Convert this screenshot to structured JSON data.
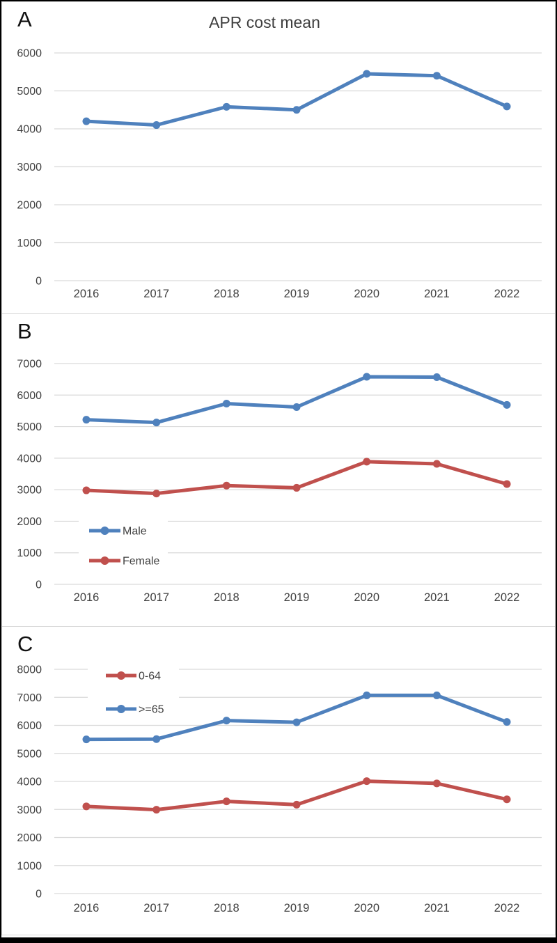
{
  "figure": {
    "description": "Three stacked line charts of APR cost mean by year",
    "panels": [
      "A",
      "B",
      "C"
    ]
  },
  "colors": {
    "blue": "#4f81bd",
    "red": "#c0504d",
    "grid": "#d9d9d9",
    "axis_text": "#404040",
    "panel_border": "#d9d9d9",
    "frame_border": "#000000"
  },
  "chart_data": [
    {
      "panel_label": "A",
      "type": "line",
      "title": "APR cost mean",
      "categories": [
        "2016",
        "2017",
        "2018",
        "2019",
        "2020",
        "2021",
        "2022"
      ],
      "xlabel": "",
      "ylabel": "",
      "ylim": [
        0,
        6000
      ],
      "ytick_step": 1000,
      "grid": true,
      "legend": false,
      "legend_position": null,
      "series": [
        {
          "name": "APR cost mean",
          "color_key": "blue",
          "values": [
            4200,
            4100,
            4580,
            4500,
            5450,
            5400,
            4590
          ]
        }
      ]
    },
    {
      "panel_label": "B",
      "type": "line",
      "title": "",
      "categories": [
        "2016",
        "2017",
        "2018",
        "2019",
        "2020",
        "2021",
        "2022"
      ],
      "xlabel": "",
      "ylabel": "",
      "ylim": [
        0,
        7000
      ],
      "ytick_step": 1000,
      "grid": true,
      "legend": true,
      "legend_position": "middle-left",
      "series": [
        {
          "name": "Male",
          "color_key": "blue",
          "values": [
            5220,
            5130,
            5730,
            5620,
            6580,
            6570,
            5690
          ]
        },
        {
          "name": "Female",
          "color_key": "red",
          "values": [
            2980,
            2880,
            3130,
            3060,
            3890,
            3820,
            3180
          ]
        }
      ]
    },
    {
      "panel_label": "C",
      "type": "line",
      "title": "",
      "categories": [
        "2016",
        "2017",
        "2018",
        "2019",
        "2020",
        "2021",
        "2022"
      ],
      "xlabel": "",
      "ylabel": "",
      "ylim": [
        0,
        8000
      ],
      "ytick_step": 1000,
      "grid": true,
      "legend": true,
      "legend_position": "upper-left",
      "series": [
        {
          "name": "0-64",
          "color_key": "red",
          "values": [
            3110,
            2990,
            3290,
            3170,
            4010,
            3930,
            3360
          ]
        },
        {
          "name": ">=65",
          "color_key": "blue",
          "values": [
            5500,
            5510,
            6170,
            6110,
            7070,
            7070,
            6120
          ]
        }
      ]
    }
  ]
}
